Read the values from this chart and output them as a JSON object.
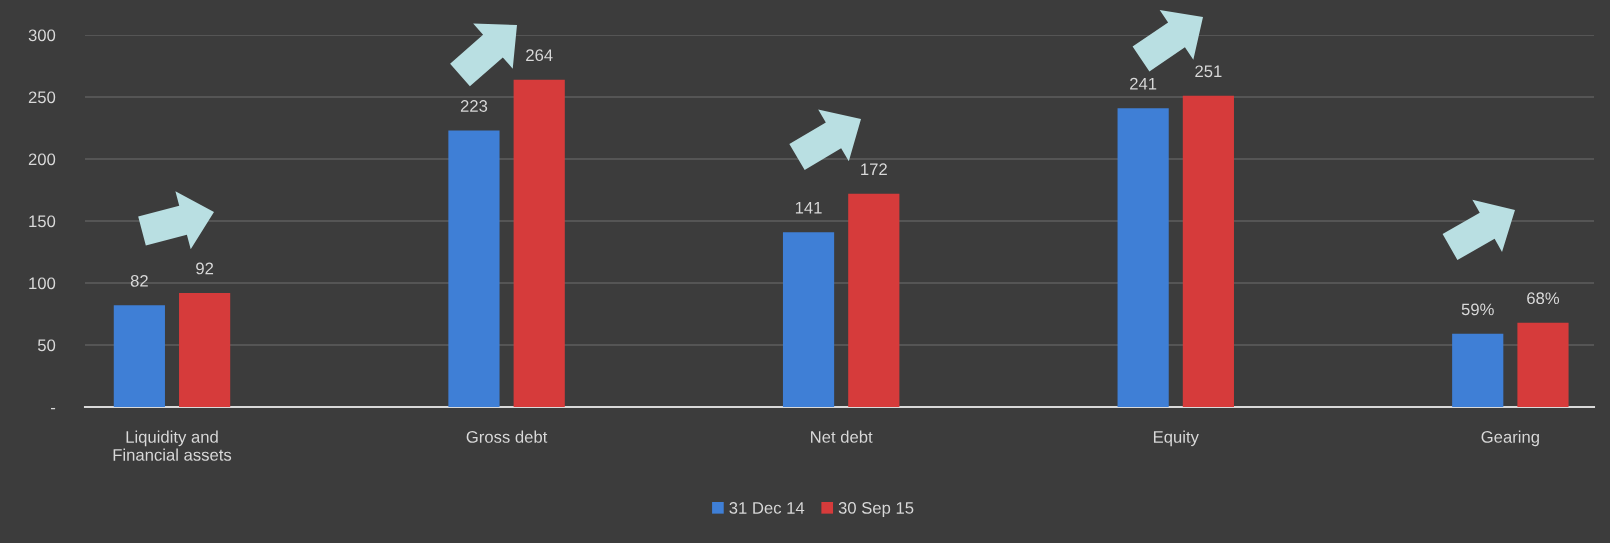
{
  "chart_data": {
    "type": "bar",
    "categories": [
      "Liquidity and\nFinancial assets",
      "Gross debt",
      "Net debt",
      "Equity",
      "Gearing"
    ],
    "series": [
      {
        "name": "31 Dec 14",
        "color": "#3f7fd6",
        "values": [
          82,
          223,
          141,
          241,
          59
        ],
        "value_labels": [
          "82",
          "223",
          "141",
          "241",
          "59%"
        ]
      },
      {
        "name": "30 Sep 15",
        "color": "#d63b3b",
        "values": [
          92,
          264,
          172,
          251,
          68
        ],
        "value_labels": [
          "92",
          "264",
          "172",
          "251",
          "68%"
        ]
      }
    ],
    "ylim": [
      0,
      300
    ],
    "yticks": [
      {
        "value": 0,
        "label": "-"
      },
      50,
      100,
      150,
      200,
      250,
      300
    ],
    "grid": "y",
    "legend": "bottom"
  }
}
